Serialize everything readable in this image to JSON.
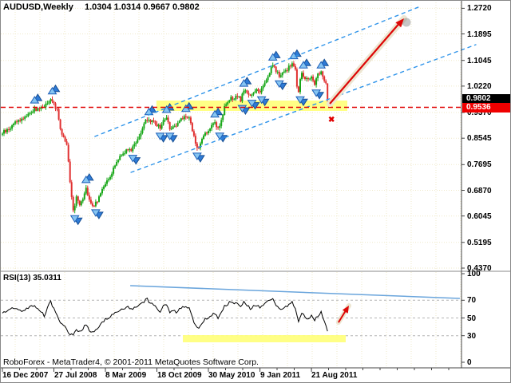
{
  "window": {
    "symbol_period": "AUDUSD,Weekly",
    "ohlc_readout": "1.0304 1.0314 0.9667 0.9802"
  },
  "footer": {
    "copyright": "RoboForex - MetaTrader4, © 2001-2011 MetaQuotes Software Corp."
  },
  "icons": {
    "rejection_cross": "✖"
  },
  "colors": {
    "bull_candle": "#18a718",
    "bear_candle": "#e03030",
    "grid_beige": "#efe9c9",
    "rsi_level_gray": "#b4b4b4",
    "support_red": "#e00000",
    "channel_blue": "#2f94ea",
    "zone_yellow": "#ffff7e",
    "arrow_red": "#dd0707",
    "arrow_glow": "#ede6d2",
    "fractal_light": "#86c5f2",
    "fractal_dark": "#2e7bd6",
    "bid_box_bg": "#000000",
    "support_box_bg": "#f00000",
    "rsi_line": "#000000",
    "rsi_trend_blue": "#6aa5dc"
  },
  "chart_data": [
    {
      "type": "candlestick",
      "title": "AUDUSD,Weekly  1.0304 1.0314 0.9667 0.9802",
      "ylabel": "",
      "xlabel": "",
      "grid": "dotted beige, horizontal at each price tick, vertical every ~15 weeks",
      "legend": "none",
      "y_axis_ticks": [
        "1.2720",
        "1.1895",
        "1.1045",
        "1.0220",
        "0.9370",
        "0.8545",
        "0.7695",
        "0.6870",
        "0.6045",
        "0.5195",
        "0.4370"
      ],
      "y_axis_tick_values": [
        1.272,
        1.1895,
        1.1045,
        1.022,
        0.937,
        0.8545,
        0.7695,
        0.687,
        0.6045,
        0.5195,
        0.437
      ],
      "price_markers": [
        {
          "label": "0.9802",
          "value": 0.9802,
          "style": "bid-black-box"
        },
        {
          "label": "0.9536",
          "value": 0.9536,
          "style": "support-red-box"
        }
      ],
      "x_axis_ticks": [
        {
          "label": "16 Dec 2007",
          "week": 0
        },
        {
          "label": "27 Jul 2008",
          "week": 32
        },
        {
          "label": "8 Mar 2009",
          "week": 64
        },
        {
          "label": "18 Oct 2009",
          "week": 96
        },
        {
          "label": "30 May 2010",
          "week": 128
        },
        {
          "label": "9 Jan 2011",
          "week": 160
        },
        {
          "label": "21 Aug 2011",
          "week": 192
        }
      ],
      "weeks_total": 203,
      "close_anchors": [
        [
          0,
          0.872
        ],
        [
          4,
          0.882
        ],
        [
          8,
          0.908
        ],
        [
          12,
          0.915
        ],
        [
          16,
          0.933
        ],
        [
          20,
          0.946
        ],
        [
          24,
          0.952
        ],
        [
          27,
          0.962
        ],
        [
          30,
          0.976
        ],
        [
          32,
          0.966
        ],
        [
          34,
          0.944
        ],
        [
          36,
          0.878
        ],
        [
          38,
          0.86
        ],
        [
          40,
          0.836
        ],
        [
          42,
          0.718
        ],
        [
          44,
          0.618
        ],
        [
          46,
          0.668
        ],
        [
          48,
          0.644
        ],
        [
          50,
          0.664
        ],
        [
          52,
          0.698
        ],
        [
          54,
          0.656
        ],
        [
          56,
          0.634
        ],
        [
          58,
          0.648
        ],
        [
          60,
          0.662
        ],
        [
          62,
          0.694
        ],
        [
          64,
          0.712
        ],
        [
          66,
          0.718
        ],
        [
          68,
          0.742
        ],
        [
          70,
          0.768
        ],
        [
          72,
          0.79
        ],
        [
          74,
          0.802
        ],
        [
          76,
          0.81
        ],
        [
          78,
          0.822
        ],
        [
          80,
          0.816
        ],
        [
          82,
          0.838
        ],
        [
          84,
          0.852
        ],
        [
          86,
          0.868
        ],
        [
          88,
          0.898
        ],
        [
          90,
          0.918
        ],
        [
          92,
          0.906
        ],
        [
          94,
          0.912
        ],
        [
          96,
          0.898
        ],
        [
          98,
          0.886
        ],
        [
          100,
          0.912
        ],
        [
          102,
          0.922
        ],
        [
          104,
          0.886
        ],
        [
          106,
          0.894
        ],
        [
          108,
          0.892
        ],
        [
          110,
          0.908
        ],
        [
          112,
          0.918
        ],
        [
          114,
          0.928
        ],
        [
          116,
          0.918
        ],
        [
          118,
          0.88
        ],
        [
          120,
          0.836
        ],
        [
          122,
          0.82
        ],
        [
          124,
          0.852
        ],
        [
          126,
          0.872
        ],
        [
          128,
          0.88
        ],
        [
          130,
          0.892
        ],
        [
          132,
          0.902
        ],
        [
          134,
          0.886
        ],
        [
          136,
          0.912
        ],
        [
          138,
          0.952
        ],
        [
          140,
          0.966
        ],
        [
          142,
          0.982
        ],
        [
          144,
          0.976
        ],
        [
          146,
          0.992
        ],
        [
          148,
          0.976
        ],
        [
          150,
          1.012
        ],
        [
          152,
          0.996
        ],
        [
          154,
          0.99
        ],
        [
          156,
          1.002
        ],
        [
          158,
          1.012
        ],
        [
          160,
          1.006
        ],
        [
          162,
          1.022
        ],
        [
          164,
          1.042
        ],
        [
          166,
          1.068
        ],
        [
          168,
          1.09
        ],
        [
          170,
          1.07
        ],
        [
          172,
          1.056
        ],
        [
          174,
          1.062
        ],
        [
          176,
          1.072
        ],
        [
          178,
          1.082
        ],
        [
          180,
          1.096
        ],
        [
          182,
          1.076
        ],
        [
          183,
          1.018
        ],
        [
          184,
          1.004
        ],
        [
          185,
          1.042
        ],
        [
          186,
          1.06
        ],
        [
          188,
          1.05
        ],
        [
          190,
          1.04
        ],
        [
          192,
          1.052
        ],
        [
          194,
          1.03
        ],
        [
          196,
          1.06
        ],
        [
          198,
          1.07
        ],
        [
          200,
          1.04
        ],
        [
          201,
          1.0304
        ],
        [
          202,
          0.9802
        ]
      ],
      "last_candle": {
        "open": 1.0304,
        "high": 1.0314,
        "low": 0.9667,
        "close": 0.9802
      },
      "annotations": {
        "support_line": {
          "price": 0.9536,
          "style": "red-dashed",
          "span": "full-width"
        },
        "support_zone": {
          "week_from": 95.7,
          "week_to": 214.3,
          "price_top": 0.9755,
          "price_bottom": 0.9421
        },
        "channel_upper": {
          "week_from": 57.5,
          "price_from": 0.8601,
          "week_to": 258.4,
          "price_to": 1.2755,
          "style": "blue-dashed"
        },
        "channel_lower": {
          "week_from": 79.9,
          "price_from": 0.7447,
          "week_to": 294.1,
          "price_to": 1.1549,
          "style": "blue-dashed"
        },
        "forecast_arrow": {
          "week_from": 203.4,
          "price_from": 0.9652,
          "week_to": 249.5,
          "price_to": 1.2396,
          "style": "red-with-glow"
        },
        "rejection_cross": {
          "week": 204.9,
          "price": 0.9114
        }
      },
      "fractal_markers": "blue paired triangles auto-placed above swing highs and below swing lows"
    },
    {
      "type": "line",
      "title": "RSI(13) 35.0311",
      "indicator_name": "RSI(13)",
      "indicator_value": "35.0311",
      "y_axis_ticks": [
        "100",
        "70",
        "50",
        "30",
        "0"
      ],
      "y_axis_tick_values": [
        100,
        70,
        50,
        30,
        0
      ],
      "level_lines": [
        70,
        50,
        30
      ],
      "ylim": [
        0,
        100
      ],
      "anchors": [
        [
          0,
          56
        ],
        [
          4,
          60
        ],
        [
          8,
          62
        ],
        [
          12,
          57
        ],
        [
          16,
          61
        ],
        [
          20,
          64
        ],
        [
          24,
          58
        ],
        [
          26,
          52
        ],
        [
          28,
          62
        ],
        [
          30,
          68
        ],
        [
          32,
          60
        ],
        [
          34,
          52
        ],
        [
          36,
          45
        ],
        [
          38,
          41
        ],
        [
          40,
          37
        ],
        [
          42,
          32
        ],
        [
          44,
          30
        ],
        [
          46,
          37
        ],
        [
          48,
          34
        ],
        [
          50,
          38
        ],
        [
          52,
          43
        ],
        [
          54,
          36
        ],
        [
          56,
          33
        ],
        [
          58,
          36
        ],
        [
          60,
          39
        ],
        [
          62,
          45
        ],
        [
          64,
          48
        ],
        [
          66,
          50
        ],
        [
          68,
          53
        ],
        [
          70,
          56
        ],
        [
          72,
          58
        ],
        [
          74,
          60
        ],
        [
          76,
          61
        ],
        [
          78,
          62
        ],
        [
          80,
          60
        ],
        [
          82,
          62
        ],
        [
          84,
          64
        ],
        [
          86,
          66
        ],
        [
          88,
          69
        ],
        [
          90,
          71
        ],
        [
          92,
          66
        ],
        [
          94,
          66
        ],
        [
          96,
          61
        ],
        [
          98,
          58
        ],
        [
          100,
          63
        ],
        [
          102,
          65
        ],
        [
          104,
          56
        ],
        [
          106,
          58
        ],
        [
          108,
          57
        ],
        [
          110,
          60
        ],
        [
          112,
          62
        ],
        [
          114,
          64
        ],
        [
          116,
          61
        ],
        [
          118,
          51
        ],
        [
          120,
          41
        ],
        [
          122,
          37
        ],
        [
          124,
          44
        ],
        [
          126,
          49
        ],
        [
          128,
          51
        ],
        [
          130,
          53
        ],
        [
          132,
          55
        ],
        [
          134,
          50
        ],
        [
          136,
          56
        ],
        [
          138,
          64
        ],
        [
          140,
          66
        ],
        [
          142,
          68
        ],
        [
          144,
          65
        ],
        [
          146,
          67
        ],
        [
          148,
          62
        ],
        [
          150,
          70
        ],
        [
          152,
          64
        ],
        [
          154,
          61
        ],
        [
          156,
          63
        ],
        [
          158,
          65
        ],
        [
          160,
          62
        ],
        [
          162,
          64
        ],
        [
          164,
          67
        ],
        [
          166,
          70
        ],
        [
          168,
          72
        ],
        [
          170,
          64
        ],
        [
          172,
          60
        ],
        [
          174,
          61
        ],
        [
          176,
          63
        ],
        [
          178,
          65
        ],
        [
          180,
          68
        ],
        [
          182,
          60
        ],
        [
          184,
          46
        ],
        [
          186,
          55
        ],
        [
          188,
          52
        ],
        [
          190,
          49
        ],
        [
          192,
          52
        ],
        [
          194,
          46
        ],
        [
          196,
          53
        ],
        [
          198,
          56
        ],
        [
          200,
          47
        ],
        [
          201,
          43
        ],
        [
          202,
          35.03
        ]
      ],
      "annotations": {
        "trend_line": {
          "week_from": 79.4,
          "rsi_from": 86.5,
          "week_to": 284.2,
          "rsi_to": 72.1,
          "style": "light-blue"
        },
        "support_zone": {
          "week_from": 112.1,
          "week_to": 213.3,
          "rsi_top": 30.6,
          "rsi_bottom": 22.5
        },
        "forecast_arrow": {
          "week_from": 208.8,
          "rsi_from": 45.0,
          "week_to": 215.3,
          "rsi_to": 64.0,
          "style": "red-with-glow"
        }
      }
    }
  ]
}
